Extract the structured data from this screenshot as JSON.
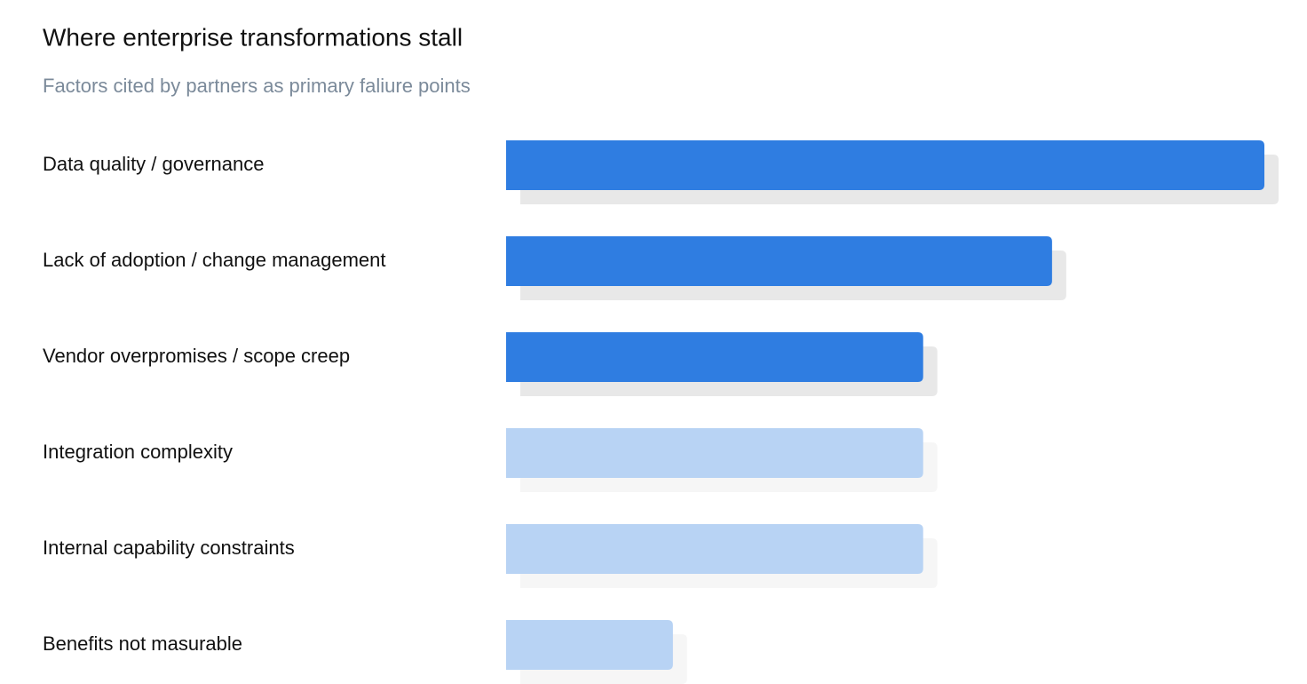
{
  "chart_data": {
    "type": "bar",
    "orientation": "horizontal",
    "title": "Where enterprise transformations stall",
    "subtitle": "Factors cited by partners as primary faliure points",
    "categories": [
      "Data quality / governance",
      "Lack of adoption / change management",
      "Vendor overpromises / scope creep",
      "Integration complexity",
      "Internal capability constraints",
      "Benefits not masurable"
    ],
    "values": [
      100,
      72,
      55,
      55,
      55,
      22
    ],
    "colors": [
      "#2f7de1",
      "#2f7de1",
      "#2f7de1",
      "#b8d3f4",
      "#b8d3f4",
      "#b8d3f4"
    ],
    "xlim": [
      0,
      100
    ]
  }
}
